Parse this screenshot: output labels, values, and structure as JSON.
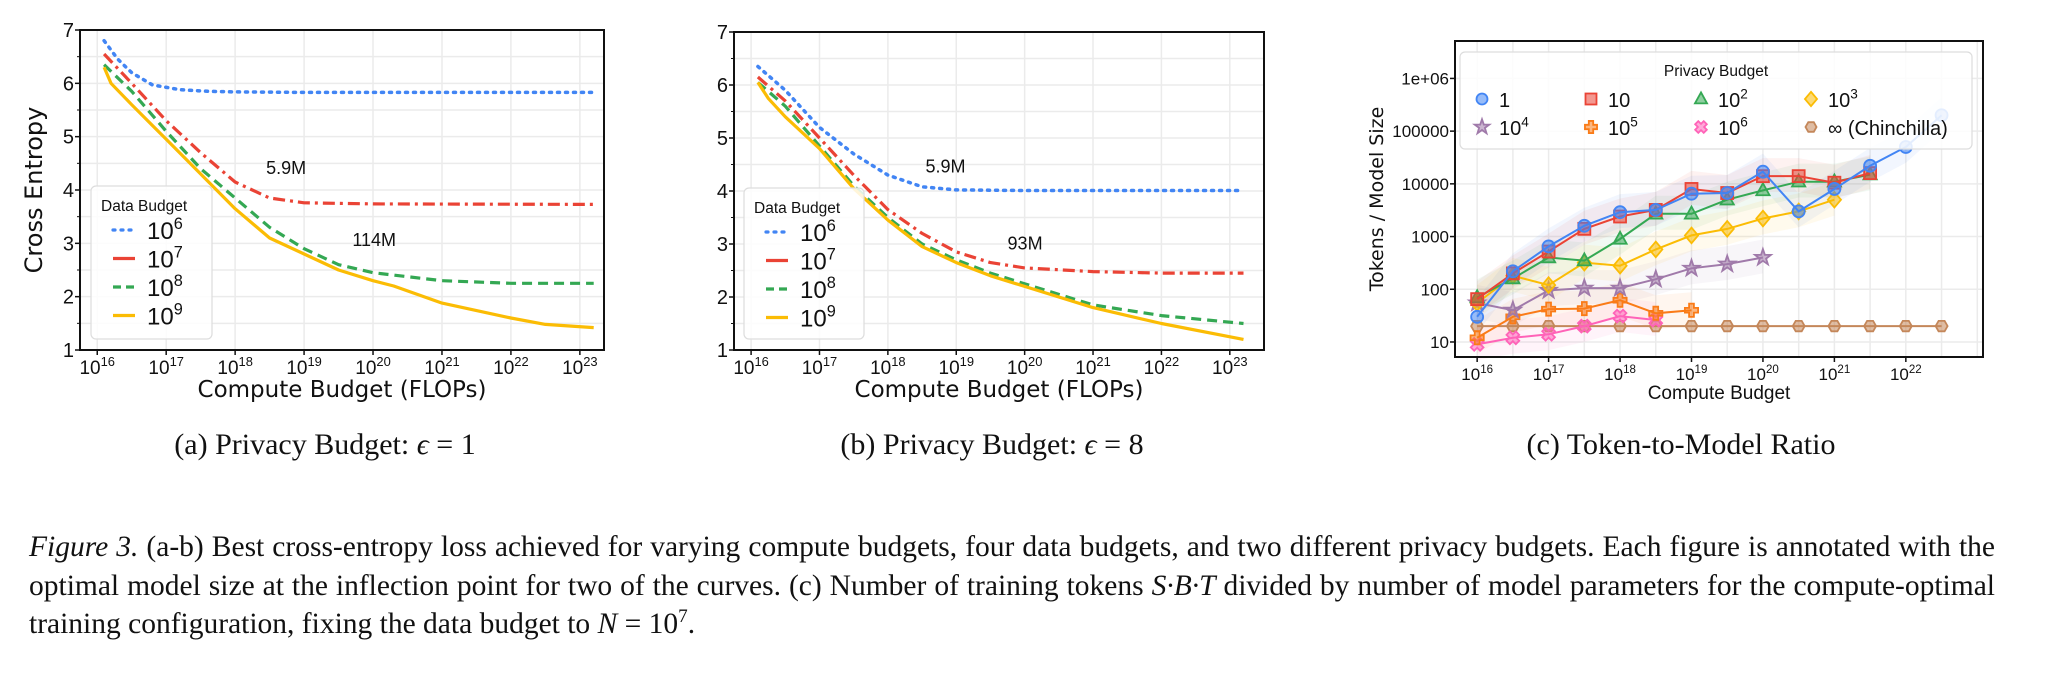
{
  "panels": [
    {
      "id": "a",
      "subcaption": {
        "prefix": "(a) Privacy Budget: ",
        "symbol": "ϵ",
        "suffix": " = 1"
      }
    },
    {
      "id": "b",
      "subcaption": {
        "prefix": "(b) Privacy Budget: ",
        "symbol": "ϵ",
        "suffix": " = 8"
      }
    },
    {
      "id": "c",
      "subcaption": {
        "prefix": "(c) Token-to-Model Ratio",
        "symbol": "",
        "suffix": ""
      }
    }
  ],
  "chart_data": [
    {
      "type": "line",
      "title": "(a) Privacy Budget: ϵ = 1",
      "xlabel": "Compute Budget (FLOPs)",
      "ylabel": "Cross Entropy",
      "xscale": "log10",
      "xlim_log10": [
        15.75,
        23.35
      ],
      "ylim": [
        1,
        7
      ],
      "xticks_log10": [
        16,
        17,
        18,
        19,
        20,
        21,
        22,
        23
      ],
      "xtick_base": "10",
      "yticks": [
        1,
        2,
        3,
        4,
        5,
        6,
        7
      ],
      "grid": true,
      "legend": {
        "title": "Data Budget",
        "placement": "center-left"
      },
      "series": [
        {
          "name": "10^6",
          "base": "10",
          "exp": "6",
          "color": "#4285F4",
          "style": "dotted",
          "points": [
            [
              16.1,
              6.8
            ],
            [
              16.3,
              6.45
            ],
            [
              16.5,
              6.2
            ],
            [
              16.8,
              5.97
            ],
            [
              17.2,
              5.88
            ],
            [
              17.6,
              5.85
            ],
            [
              18,
              5.84
            ],
            [
              19,
              5.83
            ],
            [
              23.2,
              5.83
            ]
          ]
        },
        {
          "name": "10^7",
          "base": "10",
          "exp": "7",
          "color": "#EA4335",
          "style": "dashdot",
          "points": [
            [
              16.1,
              6.55
            ],
            [
              16.5,
              6.0
            ],
            [
              17,
              5.3
            ],
            [
              17.5,
              4.7
            ],
            [
              18,
              4.15
            ],
            [
              18.5,
              3.85
            ],
            [
              19,
              3.76
            ],
            [
              20,
              3.74
            ],
            [
              23.2,
              3.73
            ]
          ]
        },
        {
          "name": "10^8",
          "base": "10",
          "exp": "8",
          "color": "#34A853",
          "style": "dashed",
          "points": [
            [
              16.1,
              6.35
            ],
            [
              16.5,
              5.85
            ],
            [
              17,
              5.1
            ],
            [
              17.5,
              4.4
            ],
            [
              18,
              3.85
            ],
            [
              18.5,
              3.3
            ],
            [
              19,
              2.9
            ],
            [
              19.5,
              2.6
            ],
            [
              20,
              2.45
            ],
            [
              21,
              2.3
            ],
            [
              22,
              2.25
            ],
            [
              23.2,
              2.25
            ]
          ]
        },
        {
          "name": "10^9",
          "base": "10",
          "exp": "9",
          "color": "#FBBC04",
          "style": "solid",
          "points": [
            [
              16.1,
              6.3
            ],
            [
              16.2,
              6.0
            ],
            [
              16.5,
              5.6
            ],
            [
              17,
              4.95
            ],
            [
              17.5,
              4.3
            ],
            [
              18,
              3.65
            ],
            [
              18.5,
              3.1
            ],
            [
              19,
              2.8
            ],
            [
              19.5,
              2.5
            ],
            [
              20,
              2.3
            ],
            [
              20.3,
              2.2
            ],
            [
              21,
              1.88
            ],
            [
              22,
              1.6
            ],
            [
              22.5,
              1.48
            ],
            [
              23.2,
              1.42
            ]
          ]
        }
      ],
      "annotations": [
        {
          "text": "5.9M",
          "x_log10": 18.45,
          "y": 4.3
        },
        {
          "text": "114M",
          "x_log10": 19.7,
          "y": 2.95
        }
      ]
    },
    {
      "type": "line",
      "title": "(b) Privacy Budget: ϵ = 8",
      "xlabel": "Compute Budget (FLOPs)",
      "ylabel": "",
      "xscale": "log10",
      "xlim_log10": [
        15.75,
        23.5
      ],
      "ylim": [
        1,
        7
      ],
      "xticks_log10": [
        16,
        17,
        18,
        19,
        20,
        21,
        22,
        23
      ],
      "xtick_base": "10",
      "yticks": [
        1,
        2,
        3,
        4,
        5,
        6,
        7
      ],
      "grid": true,
      "legend": {
        "title": "Data Budget",
        "placement": "center-left"
      },
      "series": [
        {
          "name": "10^6",
          "base": "10",
          "exp": "6",
          "color": "#4285F4",
          "style": "dotted",
          "points": [
            [
              16.1,
              6.35
            ],
            [
              16.5,
              5.9
            ],
            [
              17,
              5.2
            ],
            [
              17.5,
              4.7
            ],
            [
              18,
              4.3
            ],
            [
              18.5,
              4.08
            ],
            [
              19,
              4.02
            ],
            [
              20,
              4.01
            ],
            [
              23.2,
              4.01
            ]
          ]
        },
        {
          "name": "10^7",
          "base": "10",
          "exp": "7",
          "color": "#EA4335",
          "style": "dashdot",
          "points": [
            [
              16.1,
              6.15
            ],
            [
              16.5,
              5.7
            ],
            [
              17,
              5.0
            ],
            [
              17.5,
              4.3
            ],
            [
              18,
              3.65
            ],
            [
              18.5,
              3.2
            ],
            [
              19,
              2.85
            ],
            [
              19.5,
              2.65
            ],
            [
              20,
              2.55
            ],
            [
              21,
              2.48
            ],
            [
              22,
              2.45
            ],
            [
              23.2,
              2.45
            ]
          ]
        },
        {
          "name": "10^8",
          "base": "10",
          "exp": "8",
          "color": "#34A853",
          "style": "dashed",
          "points": [
            [
              16.1,
              6.05
            ],
            [
              16.5,
              5.6
            ],
            [
              17,
              4.85
            ],
            [
              17.5,
              4.1
            ],
            [
              18,
              3.5
            ],
            [
              18.5,
              3.0
            ],
            [
              19,
              2.7
            ],
            [
              19.5,
              2.45
            ],
            [
              20,
              2.25
            ],
            [
              21,
              1.85
            ],
            [
              22,
              1.65
            ],
            [
              23.2,
              1.5
            ]
          ]
        },
        {
          "name": "10^9",
          "base": "10",
          "exp": "9",
          "color": "#FBBC04",
          "style": "solid",
          "points": [
            [
              16.1,
              6.05
            ],
            [
              16.25,
              5.75
            ],
            [
              16.5,
              5.4
            ],
            [
              17,
              4.8
            ],
            [
              17.5,
              4.05
            ],
            [
              18,
              3.45
            ],
            [
              18.5,
              2.95
            ],
            [
              19,
              2.65
            ],
            [
              19.5,
              2.4
            ],
            [
              20,
              2.2
            ],
            [
              21,
              1.8
            ],
            [
              22,
              1.5
            ],
            [
              23.2,
              1.2
            ]
          ]
        }
      ],
      "annotations": [
        {
          "text": "5.9M",
          "x_log10": 18.55,
          "y": 4.35
        },
        {
          "text": "93M",
          "x_log10": 19.75,
          "y": 2.9
        }
      ]
    },
    {
      "type": "line",
      "title": "(c) Token-to-Model Ratio",
      "xlabel": "Compute Budget",
      "ylabel": "Tokens / Model Size",
      "xscale": "log10",
      "yscale": "log10",
      "xlim_log10": [
        15.69,
        23.08
      ],
      "ylim_log10": [
        0.715,
        6.71
      ],
      "xticks_log10": [
        16,
        17,
        18,
        19,
        20,
        21,
        22
      ],
      "xtick_base": "10",
      "yticks": [
        10,
        100,
        1000,
        10000,
        100000,
        1000000
      ],
      "ytick_labels": [
        "10",
        "100",
        "1000",
        "10000",
        "100000",
        "1e+06"
      ],
      "grid": true,
      "legend": {
        "title": "Privacy Budget",
        "placement": "top"
      },
      "x_log10_start": 16,
      "x_log10_step": 0.5,
      "series": [
        {
          "name": "1",
          "base": "1",
          "exp": "",
          "color": "#4285F4",
          "marker": "circle",
          "values": [
            30,
            220,
            650,
            1600,
            2900,
            3200,
            6500,
            6700,
            17000,
            3000,
            8000,
            22000,
            50000,
            200000
          ]
        },
        {
          "name": "10",
          "base": "10",
          "exp": "",
          "color": "#EA4335",
          "marker": "square",
          "values": [
            65,
            200,
            520,
            1400,
            2400,
            3200,
            8000,
            6700,
            14000,
            14000,
            10500,
            16000
          ]
        },
        {
          "name": "10^2",
          "base": "10",
          "exp": "2",
          "color": "#34A853",
          "marker": "triangle",
          "values": [
            70,
            160,
            400,
            350,
            900,
            2700,
            2700,
            5000,
            7500,
            11000,
            11000,
            15000
          ]
        },
        {
          "name": "10^3",
          "base": "10",
          "exp": "3",
          "color": "#FBBC04",
          "marker": "diamond",
          "values": [
            55,
            180,
            120,
            320,
            280,
            570,
            1050,
            1400,
            2200,
            3000,
            5000
          ]
        },
        {
          "name": "10^4",
          "base": "10",
          "exp": "4",
          "color": "#A07AAA",
          "marker": "star",
          "values": [
            55,
            40,
            95,
            105,
            105,
            155,
            250,
            300,
            400
          ]
        },
        {
          "name": "10^5",
          "base": "10",
          "exp": "5",
          "color": "#FA7B17",
          "marker": "plus",
          "values": [
            12,
            30,
            42,
            43,
            62,
            35,
            40
          ]
        },
        {
          "name": "10^6",
          "base": "10",
          "exp": "6",
          "color": "#FF63B8",
          "marker": "x",
          "values": [
            9,
            12,
            14,
            20,
            31,
            26
          ]
        },
        {
          "name": "∞ (Chinchilla)",
          "base": "∞ (Chinchilla)",
          "exp": "",
          "color": "#C4875A",
          "marker": "hexagon",
          "values": [
            20,
            20,
            20,
            20,
            20,
            20,
            20,
            20,
            20,
            20,
            20,
            20,
            20,
            20
          ]
        }
      ]
    }
  ],
  "caption": {
    "label": "Figure 3.",
    "text1": " (a-b) Best cross-entropy loss achieved for varying compute budgets, four data budgets, and two different privacy budgets. Each figure is annotated with the optimal model size at the inflection point for two of the curves. (c) Number of training tokens ",
    "math1": "S·B·T",
    "text2": " divided by number of model parameters for the compute-optimal training configuration, fixing the data budget to ",
    "math2_var": "N",
    "math2_eq": " = 10",
    "math2_exp": "7",
    "text3": "."
  }
}
